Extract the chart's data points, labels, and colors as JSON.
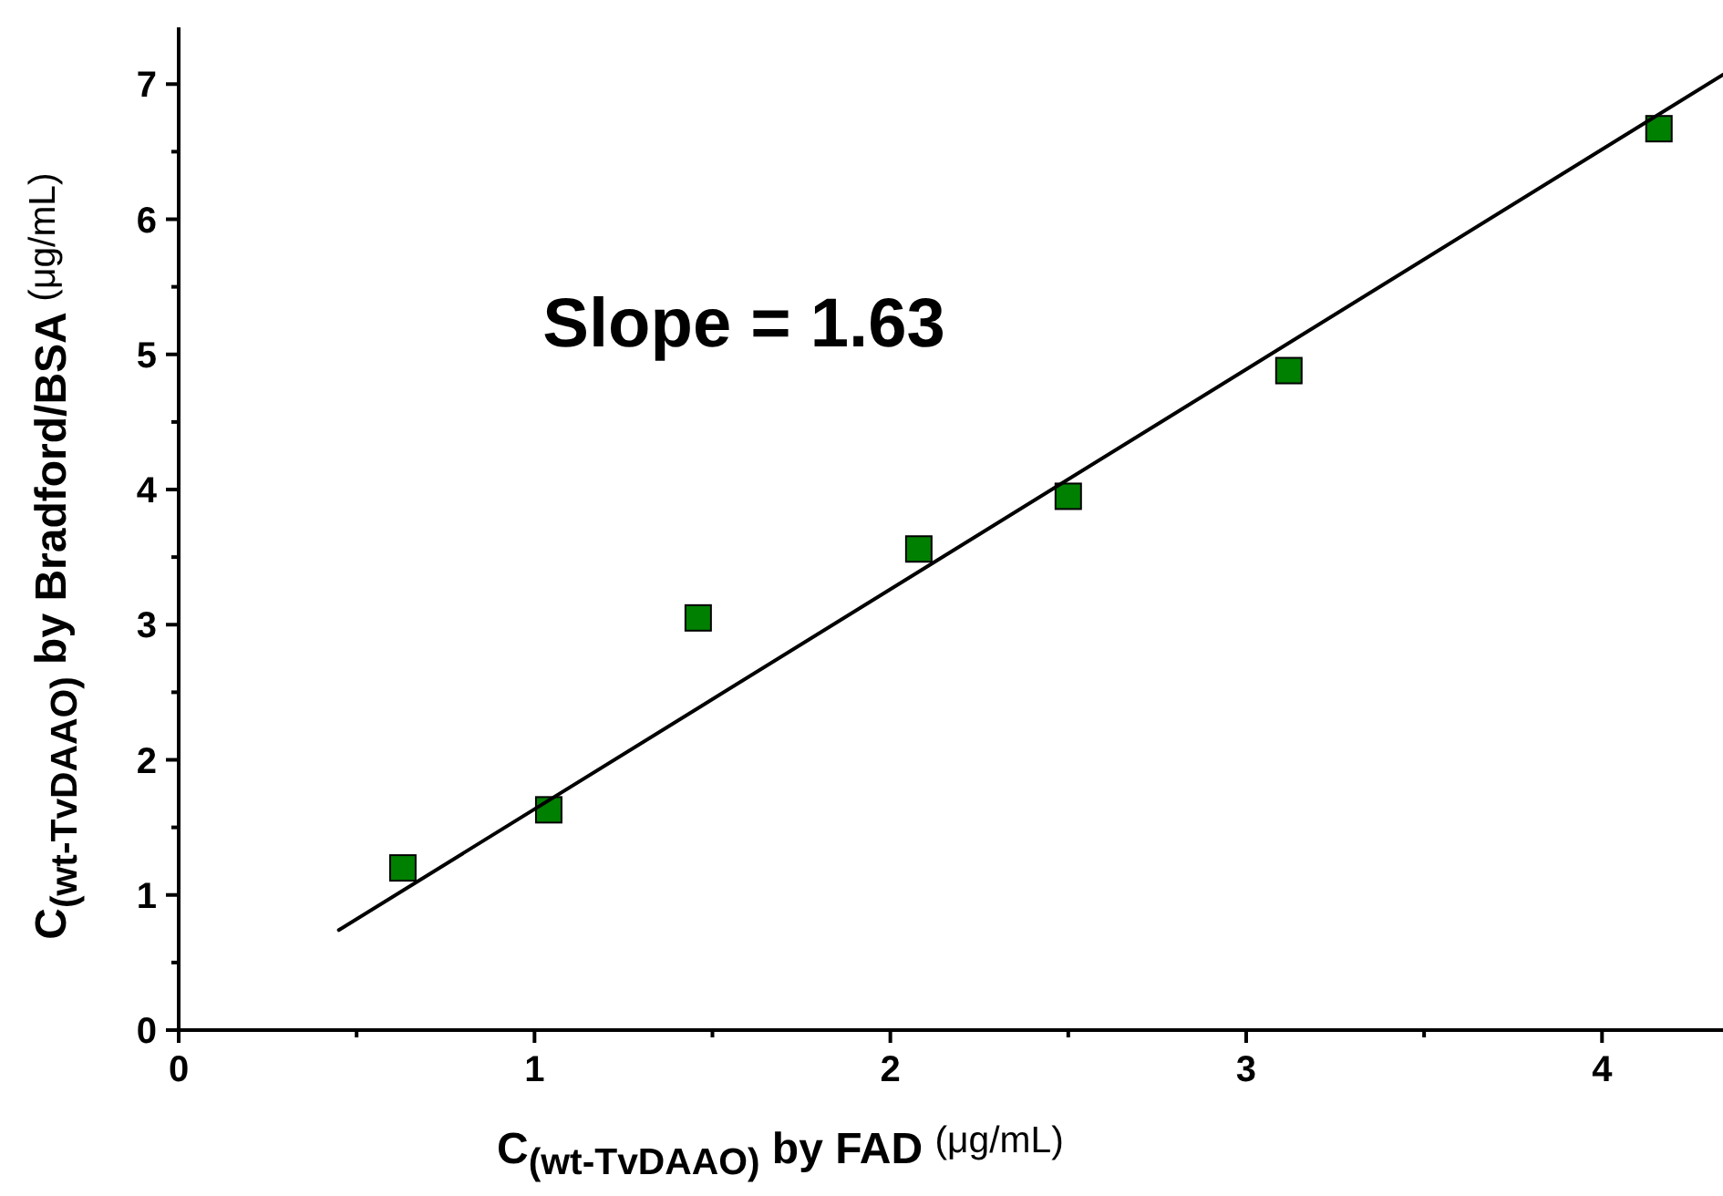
{
  "chart_data": {
    "type": "scatter",
    "xlabel": "C$_{(wt-TvDAAO)}$ by FAD $^{(μg/mL)}$",
    "ylabel": "C$_{(wt-TvDAAO)}$ by Bradford/BSA $^{(μg/mL)}$",
    "annotations": [
      "Slope = 1.63"
    ],
    "series": [
      {
        "color": "#008000",
        "marker": "square",
        "x": [
          0.63,
          1.04,
          1.46,
          2.08,
          2.5,
          3.12,
          4.16
        ],
        "values": [
          1.2,
          1.63,
          3.05,
          3.56,
          3.95,
          4.88,
          6.67
        ]
      },
      {
        "type": "line",
        "color": "#000000",
        "line_style": "solid",
        "x": [
          0.45,
          4.34
        ],
        "values": [
          0.74,
          7.07
        ]
      }
    ],
    "xlim": [
      0,
      4.34
    ],
    "ylim": [
      0,
      7.42
    ],
    "xticks": [
      0,
      {
        "value": 0.5,
        "label": null
      },
      1,
      {
        "value": 1.5,
        "label": null
      },
      2,
      {
        "value": 2.5,
        "label": null
      },
      3,
      {
        "value": 3.5,
        "label": null
      },
      4
    ],
    "yticks": [
      0,
      {
        "value": 0.5,
        "label": null
      },
      1,
      {
        "value": 1.5,
        "label": null
      },
      2,
      {
        "value": 2.5,
        "label": null
      },
      3,
      {
        "value": 3.5,
        "label": null
      },
      4,
      {
        "value": 4.5,
        "label": null
      },
      5,
      {
        "value": 5.5,
        "label": null
      },
      6,
      {
        "value": 6.5,
        "label": null
      },
      7
    ],
    "grid": false
  }
}
